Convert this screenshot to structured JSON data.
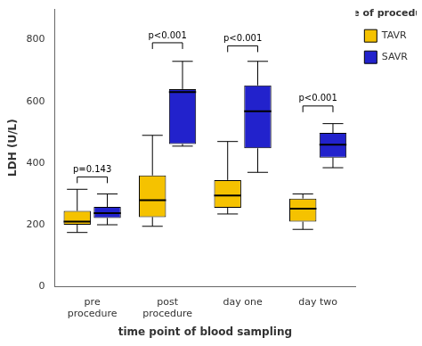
{
  "chart_data": {
    "type": "box",
    "xlabel": "time point of blood sampling",
    "ylabel": "LDH (U/L)",
    "categories": [
      "pre\nprocedure",
      "post\nprocedure",
      "day one",
      "day two"
    ],
    "series": [
      {
        "name": "TAVR",
        "color": "#F5C200",
        "values": [
          {
            "whislo": 175,
            "q1": 200,
            "med": 210,
            "q3": 245,
            "whishi": 315
          },
          {
            "whislo": 195,
            "q1": 225,
            "med": 280,
            "q3": 360,
            "whishi": 490
          },
          {
            "whislo": 235,
            "q1": 255,
            "med": 295,
            "q3": 345,
            "whishi": 470
          },
          {
            "whislo": 185,
            "q1": 210,
            "med": 252,
            "q3": 285,
            "whishi": 300
          }
        ]
      },
      {
        "name": "SAVR",
        "color": "#2222CC",
        "values": [
          {
            "whislo": 200,
            "q1": 222,
            "med": 238,
            "q3": 258,
            "whishi": 300
          },
          {
            "whislo": 455,
            "q1": 462,
            "med": 630,
            "q3": 640,
            "whishi": 730
          },
          {
            "whislo": 370,
            "q1": 448,
            "med": 568,
            "q3": 652,
            "whishi": 730
          },
          {
            "whislo": 385,
            "q1": 418,
            "med": 460,
            "q3": 498,
            "whishi": 528
          }
        ]
      }
    ],
    "annotations": [
      {
        "x": "pre\nprocedure",
        "y": 335,
        "text": "p=0.143"
      },
      {
        "x": "post\nprocedure",
        "y": 770,
        "text": "p<0.001"
      },
      {
        "x": "day one",
        "y": 760,
        "text": "p<0.001"
      },
      {
        "x": "day two",
        "y": 565,
        "text": "p<0.001"
      }
    ],
    "legend_title": "type of procedure:",
    "legend": "upper right",
    "grid": false,
    "ylim": [
      0,
      900
    ],
    "yticks": [
      0,
      200,
      400,
      600,
      800
    ]
  }
}
